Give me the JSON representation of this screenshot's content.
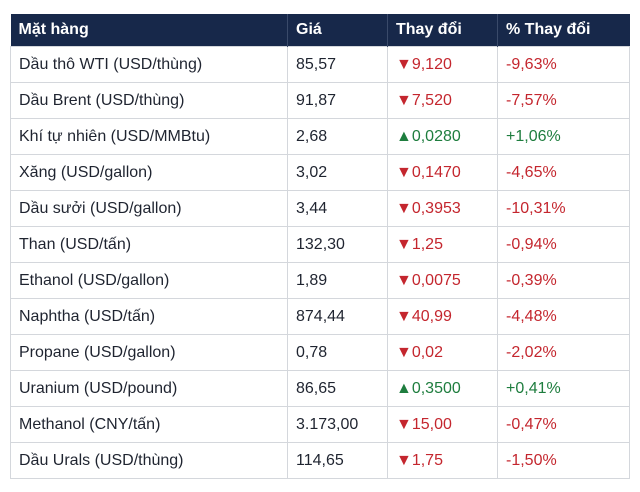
{
  "table": {
    "header": [
      "Mặt hàng",
      "Giá",
      "Thay đổi",
      "% Thay đổi"
    ],
    "rows": [
      [
        "Dầu thô WTI (USD/thùng)",
        "85,57",
        "▼9,120",
        "-9,63%"
      ],
      [
        "Dầu Brent (USD/thùng)",
        "91,87",
        "▼7,520",
        "-7,57%"
      ],
      [
        "Khí tự nhiên (USD/MMBtu)",
        "2,68",
        "▲0,0280",
        "+1,06%"
      ],
      [
        "Xăng (USD/gallon)",
        "3,02",
        "▼0,1470",
        "-4,65%"
      ],
      [
        "Dầu sưởi (USD/gallon)",
        "3,44",
        "▼0,3953",
        "-10,31%"
      ],
      [
        "Than (USD/tấn)",
        "132,30",
        "▼1,25",
        "-0,94%"
      ],
      [
        "Ethanol (USD/gallon)",
        "1,89",
        "▼0,0075",
        "-0,39%"
      ],
      [
        "Naphtha (USD/tấn)",
        "874,44",
        "▼40,99",
        "-4,48%"
      ],
      [
        "Propane (USD/gallon)",
        "0,78",
        "▼0,02",
        "-2,02%"
      ],
      [
        "Uranium (USD/pound)",
        "86,65",
        "▲0,3500",
        "+0,41%"
      ],
      [
        "Methanol (CNY/tấn)",
        "3.173,00",
        "▼15,00",
        "-0,47%"
      ],
      [
        "Dầu Urals (USD/thùng)",
        "114,65",
        "▼1,75",
        "-1,50%"
      ]
    ]
  }
}
